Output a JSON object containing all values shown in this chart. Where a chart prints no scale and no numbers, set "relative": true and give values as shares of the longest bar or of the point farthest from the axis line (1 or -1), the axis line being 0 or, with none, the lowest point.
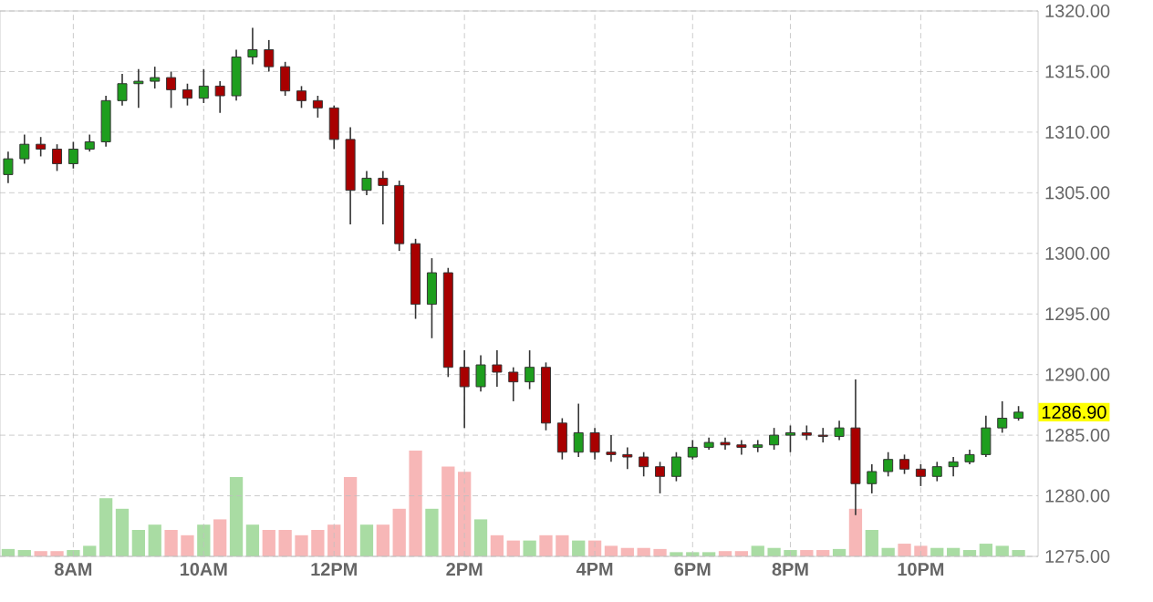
{
  "chart_data": [
    {
      "type": "candlestick",
      "categories": [
        null,
        null,
        null,
        null,
        "8AM",
        null,
        null,
        null,
        null,
        null,
        null,
        null,
        "10AM",
        null,
        null,
        null,
        null,
        null,
        null,
        null,
        "12PM",
        null,
        null,
        null,
        null,
        null,
        null,
        null,
        "2PM",
        null,
        null,
        null,
        null,
        null,
        null,
        null,
        "4PM",
        null,
        null,
        null,
        null,
        null,
        "6PM",
        null,
        null,
        null,
        null,
        null,
        "8PM",
        null,
        null,
        null,
        null,
        null,
        null,
        null,
        "10PM",
        null,
        null,
        null,
        null,
        null,
        null
      ],
      "ohlc": [
        [
          1306.5,
          1308.4,
          1305.8,
          1307.8
        ],
        [
          1307.8,
          1309.8,
          1307.4,
          1309.0
        ],
        [
          1309.0,
          1309.6,
          1308.0,
          1308.6
        ],
        [
          1308.6,
          1309.0,
          1306.8,
          1307.4
        ],
        [
          1307.4,
          1309.2,
          1307.0,
          1308.6
        ],
        [
          1308.6,
          1309.8,
          1308.4,
          1309.2
        ],
        [
          1309.2,
          1313.0,
          1308.8,
          1312.6
        ],
        [
          1312.6,
          1314.8,
          1312.2,
          1314.0
        ],
        [
          1314.0,
          1315.2,
          1312.0,
          1314.2
        ],
        [
          1314.2,
          1315.4,
          1313.6,
          1314.5
        ],
        [
          1314.5,
          1315.0,
          1312.0,
          1313.5
        ],
        [
          1313.5,
          1314.0,
          1312.2,
          1312.8
        ],
        [
          1312.8,
          1315.2,
          1312.4,
          1313.8
        ],
        [
          1313.8,
          1314.2,
          1311.6,
          1313.0
        ],
        [
          1313.0,
          1316.8,
          1312.6,
          1316.2
        ],
        [
          1316.2,
          1318.6,
          1315.6,
          1316.8
        ],
        [
          1316.8,
          1317.6,
          1315.0,
          1315.4
        ],
        [
          1315.4,
          1315.8,
          1313.0,
          1313.4
        ],
        [
          1313.4,
          1313.8,
          1312.0,
          1312.6
        ],
        [
          1312.6,
          1313.0,
          1311.2,
          1312.0
        ],
        [
          1312.0,
          1312.2,
          1308.6,
          1309.4
        ],
        [
          1309.4,
          1310.4,
          1302.4,
          1305.2
        ],
        [
          1305.2,
          1306.8,
          1304.8,
          1306.2
        ],
        [
          1306.2,
          1306.8,
          1302.4,
          1305.6
        ],
        [
          1305.6,
          1306.0,
          1300.2,
          1300.8
        ],
        [
          1300.8,
          1301.2,
          1294.6,
          1295.8
        ],
        [
          1295.8,
          1299.6,
          1293.0,
          1298.4
        ],
        [
          1298.4,
          1298.8,
          1289.8,
          1290.6
        ],
        [
          1290.6,
          1292.0,
          1285.6,
          1289.0
        ],
        [
          1289.0,
          1291.6,
          1288.6,
          1290.8
        ],
        [
          1290.8,
          1292.0,
          1289.0,
          1290.2
        ],
        [
          1290.2,
          1290.6,
          1287.8,
          1289.4
        ],
        [
          1289.4,
          1292.0,
          1288.8,
          1290.6
        ],
        [
          1290.6,
          1291.0,
          1285.4,
          1286.0
        ],
        [
          1286.0,
          1286.4,
          1283.0,
          1283.6
        ],
        [
          1283.6,
          1287.6,
          1283.2,
          1285.2
        ],
        [
          1285.2,
          1285.6,
          1283.0,
          1283.6
        ],
        [
          1283.6,
          1285.0,
          1282.8,
          1283.4
        ],
        [
          1283.4,
          1284.0,
          1282.2,
          1283.2
        ],
        [
          1283.2,
          1283.6,
          1281.6,
          1282.4
        ],
        [
          1282.4,
          1282.8,
          1280.2,
          1281.6
        ],
        [
          1281.6,
          1283.6,
          1281.2,
          1283.2
        ],
        [
          1283.2,
          1284.6,
          1283.0,
          1284.0
        ],
        [
          1284.0,
          1284.8,
          1283.8,
          1284.4
        ],
        [
          1284.4,
          1284.8,
          1283.8,
          1284.2
        ],
        [
          1284.2,
          1284.6,
          1283.4,
          1284.0
        ],
        [
          1284.0,
          1284.6,
          1283.6,
          1284.2
        ],
        [
          1284.2,
          1285.6,
          1283.8,
          1285.0
        ],
        [
          1285.0,
          1285.8,
          1283.6,
          1285.2
        ],
        [
          1285.2,
          1285.8,
          1284.6,
          1285.0
        ],
        [
          1285.0,
          1285.6,
          1284.4,
          1284.9
        ],
        [
          1284.9,
          1286.2,
          1284.6,
          1285.6
        ],
        [
          1285.6,
          1289.6,
          1278.4,
          1281.0
        ],
        [
          1281.0,
          1282.6,
          1280.2,
          1282.0
        ],
        [
          1282.0,
          1283.6,
          1281.6,
          1283.0
        ],
        [
          1283.0,
          1283.4,
          1281.8,
          1282.2
        ],
        [
          1282.2,
          1282.6,
          1280.8,
          1281.6
        ],
        [
          1281.6,
          1282.8,
          1281.2,
          1282.4
        ],
        [
          1282.4,
          1283.2,
          1281.6,
          1282.8
        ],
        [
          1282.8,
          1283.8,
          1282.6,
          1283.4
        ],
        [
          1283.4,
          1286.6,
          1283.2,
          1285.6
        ],
        [
          1285.6,
          1287.8,
          1285.2,
          1286.4
        ],
        [
          1286.4,
          1287.4,
          1286.2,
          1286.9
        ]
      ],
      "colors": [
        "#1e9e1e",
        "#1e9e1e",
        "#a80000",
        "#a80000",
        "#1e9e1e",
        "#1e9e1e",
        "#1e9e1e",
        "#1e9e1e",
        "#1e9e1e",
        "#1e9e1e",
        "#a80000",
        "#a80000",
        "#1e9e1e",
        "#a80000",
        "#1e9e1e",
        "#1e9e1e",
        "#a80000",
        "#a80000",
        "#a80000",
        "#a80000",
        "#a80000",
        "#a80000",
        "#1e9e1e",
        "#a80000",
        "#a80000",
        "#a80000",
        "#1e9e1e",
        "#a80000",
        "#a80000",
        "#1e9e1e",
        "#a80000",
        "#a80000",
        "#1e9e1e",
        "#a80000",
        "#a80000",
        "#1e9e1e",
        "#a80000",
        "#a80000",
        "#a80000",
        "#a80000",
        "#a80000",
        "#1e9e1e",
        "#1e9e1e",
        "#1e9e1e",
        "#a80000",
        "#a80000",
        "#1e9e1e",
        "#1e9e1e",
        "#1e9e1e",
        "#a80000",
        "#a80000",
        "#1e9e1e",
        "#a80000",
        "#1e9e1e",
        "#1e9e1e",
        "#a80000",
        "#a80000",
        "#1e9e1e",
        "#1e9e1e",
        "#1e9e1e",
        "#1e9e1e",
        "#1e9e1e",
        "#1e9e1e"
      ],
      "ylim": [
        1275,
        1320
      ],
      "yticks": [
        {
          "value": 1275,
          "label": "1275.00"
        },
        {
          "value": 1280,
          "label": "1280.00"
        },
        {
          "value": 1285,
          "label": "1285.00"
        },
        {
          "value": 1290,
          "label": "1290.00"
        },
        {
          "value": 1295,
          "label": "1295.00"
        },
        {
          "value": 1300,
          "label": "1300.00"
        },
        {
          "value": 1305,
          "label": "1305.00"
        },
        {
          "value": 1310,
          "label": "1310.00"
        },
        {
          "value": 1315,
          "label": "1315.00"
        },
        {
          "value": 1320,
          "label": "1320.00"
        }
      ],
      "annotations": [
        "1286.90"
      ],
      "grid": true
    },
    {
      "type": "bar",
      "relative": true,
      "tick_labels": false,
      "categories": [
        null,
        null,
        null,
        null,
        null,
        null,
        null,
        null,
        null,
        null,
        null,
        null,
        null,
        null,
        null,
        null,
        null,
        null,
        null,
        null,
        null,
        null,
        null,
        null,
        null,
        null,
        null,
        null,
        null,
        null,
        null,
        null,
        null,
        null,
        null,
        null,
        null,
        null,
        null,
        null,
        null,
        null,
        null,
        null,
        null,
        null,
        null,
        null,
        null,
        null,
        null,
        null,
        null,
        null,
        null,
        null,
        null,
        null,
        null,
        null,
        null,
        null,
        null
      ],
      "values": [
        0.07,
        0.06,
        0.05,
        0.05,
        0.06,
        0.1,
        0.55,
        0.45,
        0.25,
        0.3,
        0.25,
        0.2,
        0.3,
        0.35,
        0.75,
        0.3,
        0.25,
        0.25,
        0.2,
        0.25,
        0.3,
        0.75,
        0.3,
        0.3,
        0.45,
        1.0,
        0.45,
        0.85,
        0.8,
        0.35,
        0.2,
        0.15,
        0.15,
        0.2,
        0.2,
        0.15,
        0.15,
        0.1,
        0.08,
        0.08,
        0.07,
        0.04,
        0.04,
        0.04,
        0.05,
        0.05,
        0.1,
        0.08,
        0.06,
        0.06,
        0.06,
        0.07,
        0.45,
        0.25,
        0.08,
        0.12,
        0.1,
        0.08,
        0.08,
        0.06,
        0.12,
        0.1,
        0.06
      ],
      "colors": [
        "#a9dca3",
        "#a9dca3",
        "#f7b7b7",
        "#f7b7b7",
        "#a9dca3",
        "#a9dca3",
        "#a9dca3",
        "#a9dca3",
        "#a9dca3",
        "#a9dca3",
        "#f7b7b7",
        "#f7b7b7",
        "#a9dca3",
        "#f7b7b7",
        "#a9dca3",
        "#a9dca3",
        "#f7b7b7",
        "#f7b7b7",
        "#f7b7b7",
        "#f7b7b7",
        "#f7b7b7",
        "#f7b7b7",
        "#a9dca3",
        "#f7b7b7",
        "#f7b7b7",
        "#f7b7b7",
        "#a9dca3",
        "#f7b7b7",
        "#f7b7b7",
        "#a9dca3",
        "#f7b7b7",
        "#f7b7b7",
        "#a9dca3",
        "#f7b7b7",
        "#f7b7b7",
        "#a9dca3",
        "#f7b7b7",
        "#f7b7b7",
        "#f7b7b7",
        "#f7b7b7",
        "#f7b7b7",
        "#a9dca3",
        "#a9dca3",
        "#a9dca3",
        "#f7b7b7",
        "#f7b7b7",
        "#a9dca3",
        "#a9dca3",
        "#a9dca3",
        "#f7b7b7",
        "#f7b7b7",
        "#a9dca3",
        "#f7b7b7",
        "#a9dca3",
        "#a9dca3",
        "#f7b7b7",
        "#f7b7b7",
        "#a9dca3",
        "#a9dca3",
        "#a9dca3",
        "#a9dca3",
        "#a9dca3",
        "#a9dca3"
      ]
    }
  ]
}
